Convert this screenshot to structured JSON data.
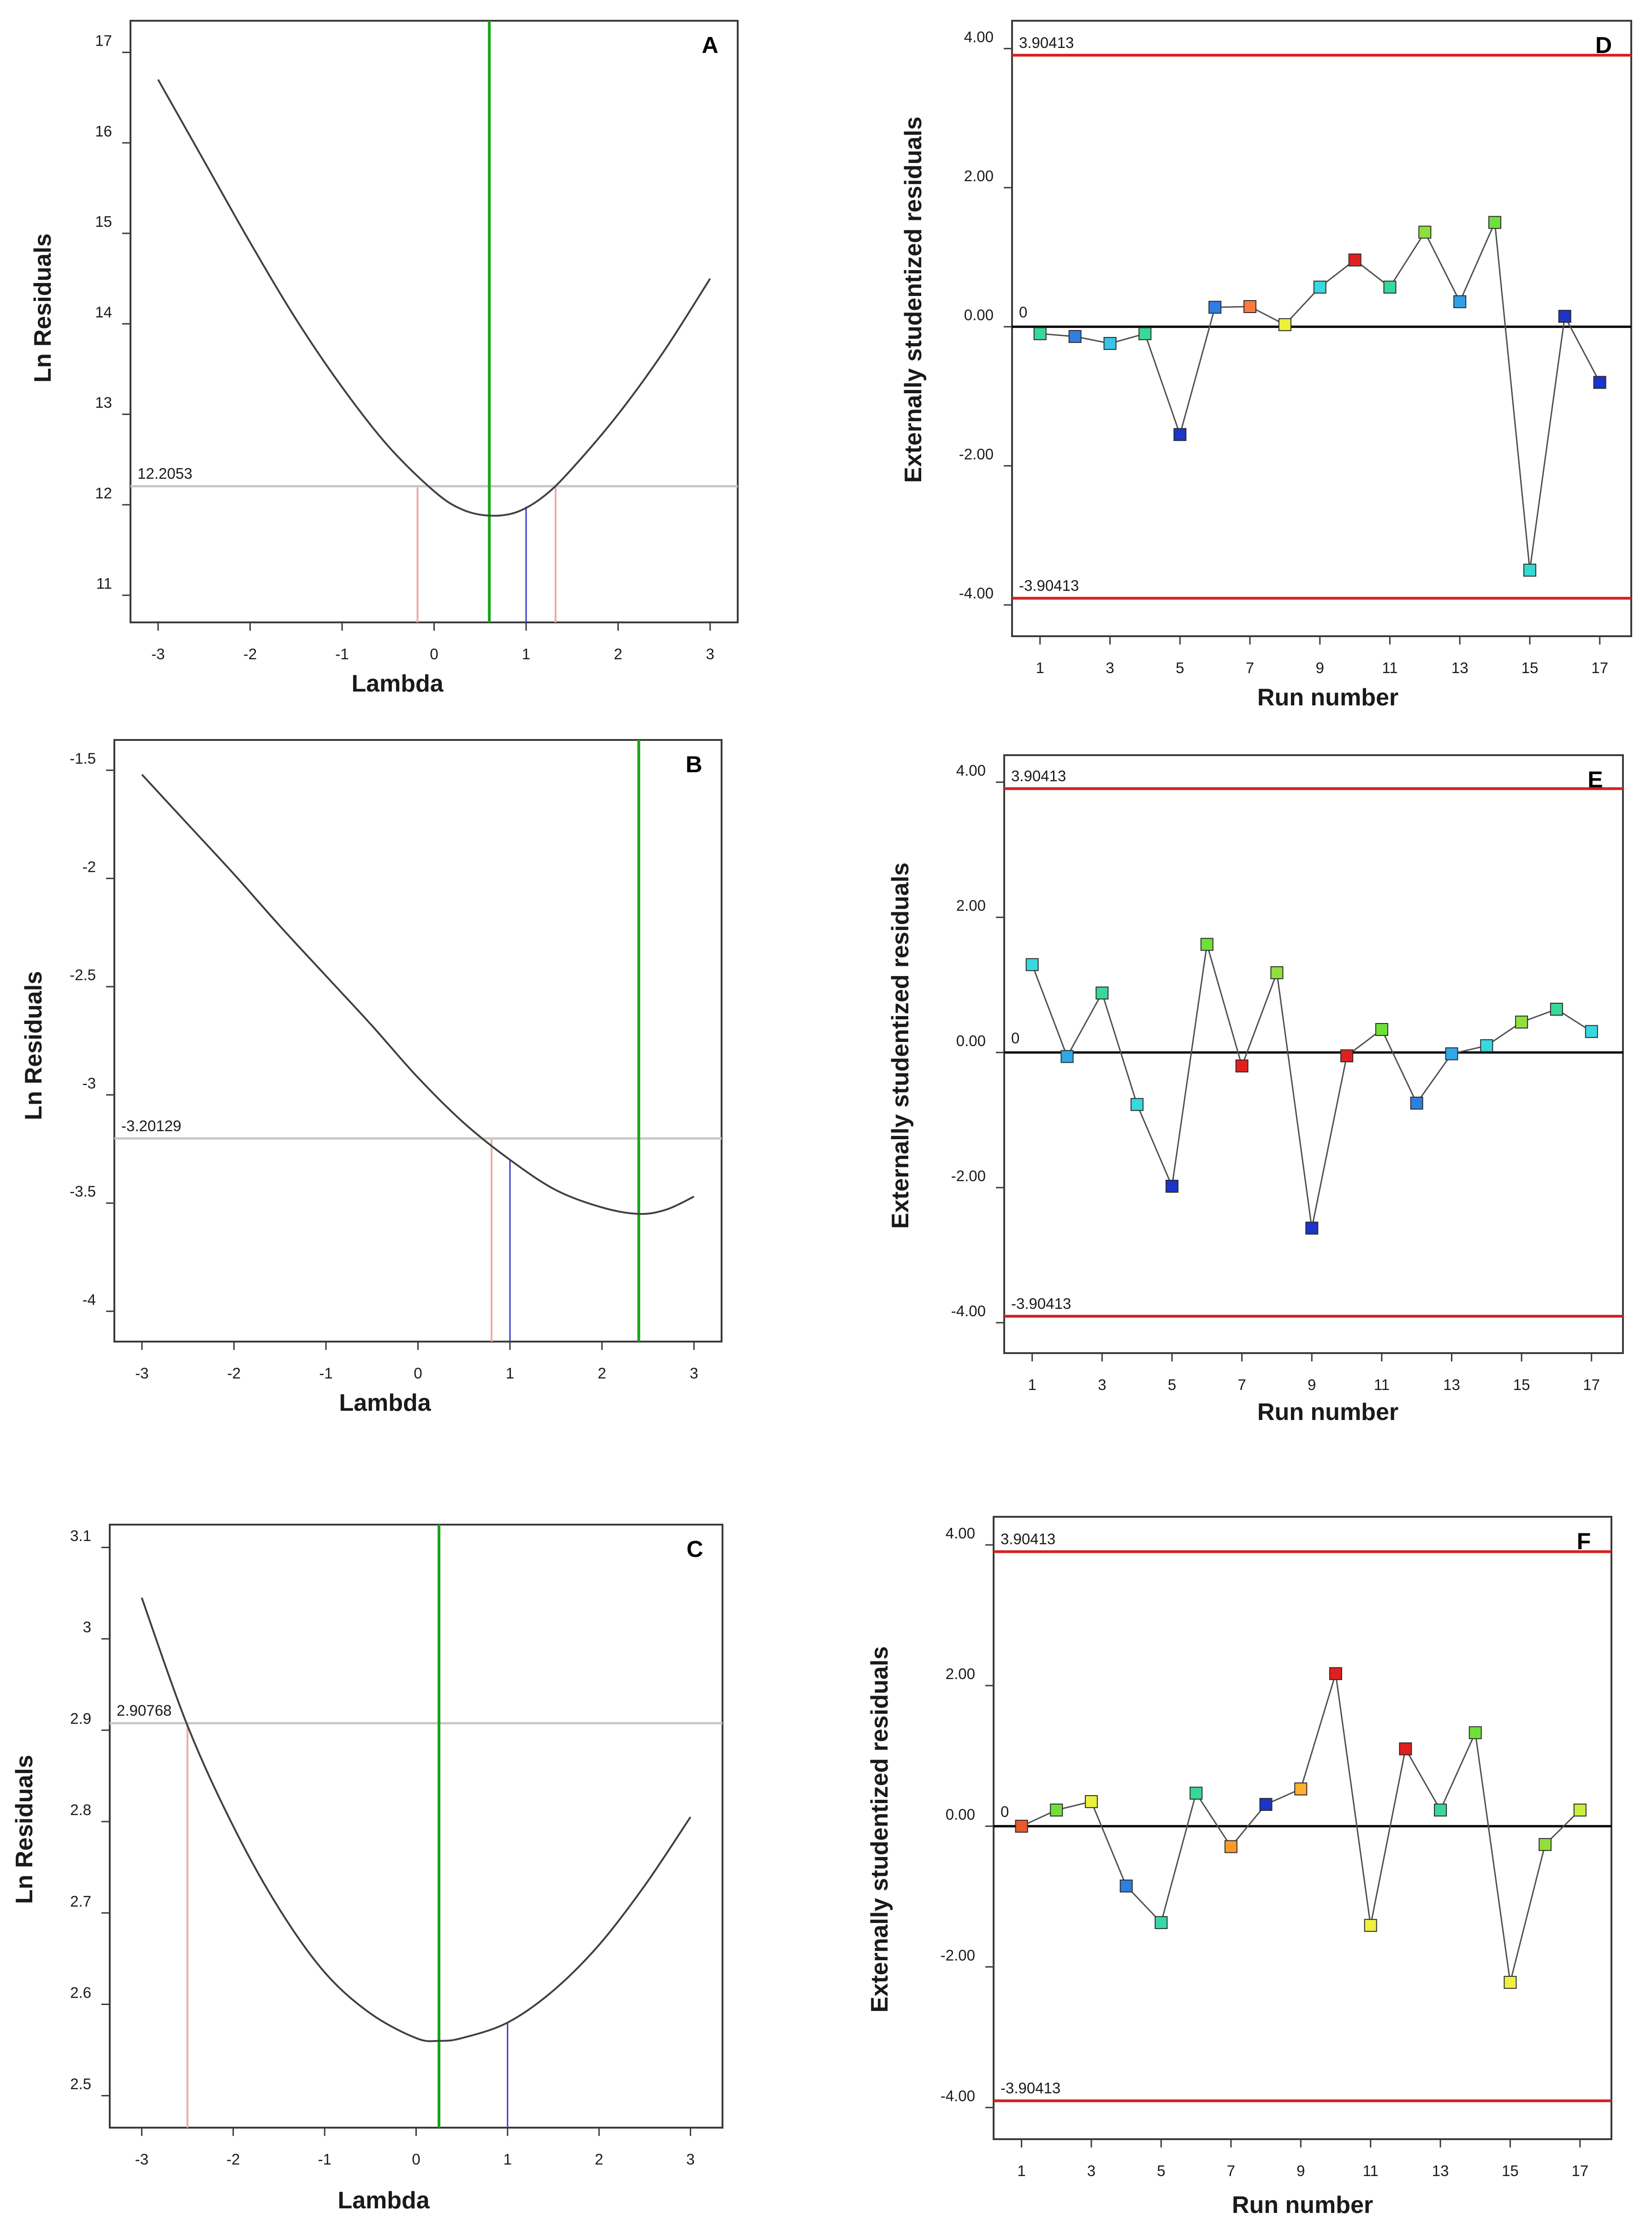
{
  "colors": {
    "curve": "#404040",
    "ci_line": "#c8c8c8",
    "best_lambda": "#17a317",
    "current_lambda": "#3a3ac8",
    "ci_bound": "#f2a8a8",
    "limit": "#d42020",
    "zero": "#000000",
    "connector": "#505050"
  },
  "chart_data": [
    {
      "id": "A",
      "type": "line",
      "panel_letter": "A",
      "xlabel": "Lambda",
      "ylabel": "Ln Residuals",
      "xlim": [
        -3.3,
        3.3
      ],
      "ylim": [
        10.7,
        17.35
      ],
      "xticks": [
        {
          "v": -3,
          "label": "-3"
        },
        {
          "v": -2,
          "label": "-2"
        },
        {
          "v": -1,
          "label": "-1"
        },
        {
          "v": 0,
          "label": "0"
        },
        {
          "v": 1,
          "label": "1"
        },
        {
          "v": 2,
          "label": "2"
        },
        {
          "v": 3,
          "label": "3"
        }
      ],
      "yticks": [
        {
          "v": 11,
          "label": "11"
        },
        {
          "v": 12,
          "label": "12"
        },
        {
          "v": 13,
          "label": "13"
        },
        {
          "v": 14,
          "label": "14"
        },
        {
          "v": 15,
          "label": "15"
        },
        {
          "v": 16,
          "label": "16"
        },
        {
          "v": 17,
          "label": "17"
        }
      ],
      "curve": {
        "x": [
          -3,
          -2.5,
          -2,
          -1.5,
          -1,
          -0.5,
          0,
          0.3,
          0.6,
          0.9,
          1.2,
          1.5,
          2,
          2.5,
          3
        ],
        "y": [
          16.7,
          15.8,
          14.9,
          14.05,
          13.3,
          12.65,
          12.15,
          11.95,
          11.88,
          11.92,
          12.1,
          12.4,
          13.0,
          13.7,
          14.5
        ]
      },
      "ci_value": 12.2053,
      "ci_label": "12.2053",
      "best_lambda": 0.6,
      "current_lambda": 1,
      "ci_bounds": [
        -0.18,
        1.32
      ]
    },
    {
      "id": "B",
      "type": "line",
      "panel_letter": "B",
      "xlabel": "Lambda",
      "ylabel": "Ln Residuals",
      "xlim": [
        -3.3,
        3.3
      ],
      "ylim": [
        -4.14,
        -1.36
      ],
      "xticks": [
        {
          "v": -3,
          "label": "-3"
        },
        {
          "v": -2,
          "label": "-2"
        },
        {
          "v": -1,
          "label": "-1"
        },
        {
          "v": 0,
          "label": "0"
        },
        {
          "v": 1,
          "label": "1"
        },
        {
          "v": 2,
          "label": "2"
        },
        {
          "v": 3,
          "label": "3"
        }
      ],
      "yticks": [
        {
          "v": -4,
          "label": "-4"
        },
        {
          "v": -3.5,
          "label": "-3.5"
        },
        {
          "v": -3,
          "label": "-3"
        },
        {
          "v": -2.5,
          "label": "-2.5"
        },
        {
          "v": -2,
          "label": "-2"
        },
        {
          "v": -1.5,
          "label": "-1.5"
        }
      ],
      "curve": {
        "x": [
          -3,
          -2.5,
          -2,
          -1.5,
          -1,
          -0.5,
          0,
          0.5,
          1,
          1.5,
          2,
          2.4,
          2.7,
          3
        ],
        "y": [
          -1.52,
          -1.75,
          -1.98,
          -2.22,
          -2.45,
          -2.68,
          -2.92,
          -3.13,
          -3.3,
          -3.44,
          -3.52,
          -3.55,
          -3.53,
          -3.47
        ]
      },
      "ci_value": -3.20129,
      "ci_label": "-3.20129",
      "best_lambda": 2.4,
      "current_lambda": 1,
      "ci_bounds": [
        0.8
      ]
    },
    {
      "id": "C",
      "type": "line",
      "panel_letter": "C",
      "xlabel": "Lambda",
      "ylabel": "Ln Residuals",
      "xlim": [
        -3.35,
        3.35
      ],
      "ylim": [
        2.465,
        3.125
      ],
      "xticks": [
        {
          "v": -3,
          "label": "-3"
        },
        {
          "v": -2,
          "label": "-2"
        },
        {
          "v": -1,
          "label": "-1"
        },
        {
          "v": 0,
          "label": "0"
        },
        {
          "v": 1,
          "label": "1"
        },
        {
          "v": 2,
          "label": "2"
        },
        {
          "v": 3,
          "label": "3"
        }
      ],
      "yticks": [
        {
          "v": 2.5,
          "label": "2.5"
        },
        {
          "v": 2.6,
          "label": "2.6"
        },
        {
          "v": 2.7,
          "label": "2.7"
        },
        {
          "v": 2.8,
          "label": "2.8"
        },
        {
          "v": 2.9,
          "label": "2.9"
        },
        {
          "v": 3.0,
          "label": "3"
        },
        {
          "v": 3.1,
          "label": "3.1"
        }
      ],
      "curve": {
        "x": [
          -3,
          -2.5,
          -2,
          -1.5,
          -1,
          -0.5,
          0,
          0.25,
          0.5,
          1,
          1.5,
          2,
          2.5,
          3
        ],
        "y": [
          3.045,
          2.905,
          2.795,
          2.705,
          2.635,
          2.59,
          2.563,
          2.56,
          2.563,
          2.58,
          2.615,
          2.665,
          2.73,
          2.805
        ]
      },
      "ci_value": 2.90768,
      "ci_label": "2.90768",
      "best_lambda": 0.25,
      "current_lambda": 1,
      "ci_bounds": [
        -2.5
      ]
    },
    {
      "id": "D",
      "type": "scatter",
      "panel_letter": "D",
      "xlabel": "Run number",
      "ylabel": "Externally studentized residuals",
      "xlim": [
        0.2,
        17.9
      ],
      "ylim": [
        -4.45,
        4.4
      ],
      "xticks": [
        {
          "v": 1,
          "label": "1"
        },
        {
          "v": 3,
          "label": "3"
        },
        {
          "v": 5,
          "label": "5"
        },
        {
          "v": 7,
          "label": "7"
        },
        {
          "v": 9,
          "label": "9"
        },
        {
          "v": 11,
          "label": "11"
        },
        {
          "v": 13,
          "label": "13"
        },
        {
          "v": 15,
          "label": "15"
        },
        {
          "v": 17,
          "label": "17"
        }
      ],
      "yticks": [
        {
          "v": -4,
          "label": "-4.00"
        },
        {
          "v": -2,
          "label": "-2.00"
        },
        {
          "v": 0,
          "label": "0.00"
        },
        {
          "v": 2,
          "label": "2.00"
        },
        {
          "v": 4,
          "label": "4.00"
        }
      ],
      "upper_limit": 3.90413,
      "lower_limit": -3.90413,
      "upper_label": "3.90413",
      "lower_label": "-3.90413",
      "zero_label": "0",
      "x": [
        1,
        2,
        3,
        4,
        5,
        6,
        7,
        8,
        9,
        10,
        11,
        12,
        13,
        14,
        15,
        16,
        17
      ],
      "y": [
        -0.1,
        -0.14,
        -0.24,
        -0.1,
        -1.55,
        0.28,
        0.29,
        0.03,
        0.57,
        0.96,
        0.57,
        1.36,
        0.36,
        1.5,
        -3.5,
        0.15,
        -0.8
      ],
      "point_colors": [
        "#37d898",
        "#2f7fe0",
        "#36c4e8",
        "#37d898",
        "#1a35c8",
        "#2f7fe0",
        "#ff7a3d",
        "#eaf03c",
        "#38d8e0",
        "#e02020",
        "#37d898",
        "#8fe03a",
        "#2f9fe8",
        "#6fe03a",
        "#38d8d0",
        "#1a35c8",
        "#1a35c8"
      ]
    },
    {
      "id": "E",
      "type": "scatter",
      "panel_letter": "E",
      "xlabel": "Run number",
      "ylabel": "Externally studentized residuals",
      "xlim": [
        0.2,
        17.9
      ],
      "ylim": [
        -4.45,
        4.4
      ],
      "xticks": [
        {
          "v": 1,
          "label": "1"
        },
        {
          "v": 3,
          "label": "3"
        },
        {
          "v": 5,
          "label": "5"
        },
        {
          "v": 7,
          "label": "7"
        },
        {
          "v": 9,
          "label": "9"
        },
        {
          "v": 11,
          "label": "11"
        },
        {
          "v": 13,
          "label": "13"
        },
        {
          "v": 15,
          "label": "15"
        },
        {
          "v": 17,
          "label": "17"
        }
      ],
      "yticks": [
        {
          "v": -4,
          "label": "-4.00"
        },
        {
          "v": -2,
          "label": "-2.00"
        },
        {
          "v": 0,
          "label": "0.00"
        },
        {
          "v": 2,
          "label": "2.00"
        },
        {
          "v": 4,
          "label": "4.00"
        }
      ],
      "upper_limit": 3.90413,
      "lower_limit": -3.90413,
      "upper_label": "3.90413",
      "lower_label": "-3.90413",
      "zero_label": "0",
      "x": [
        1,
        2,
        3,
        4,
        5,
        6,
        7,
        8,
        9,
        10,
        11,
        12,
        13,
        14,
        15,
        16,
        17
      ],
      "y": [
        1.3,
        -0.06,
        0.88,
        -0.77,
        -1.98,
        1.6,
        -0.2,
        1.18,
        -2.6,
        -0.05,
        0.34,
        -0.75,
        -0.02,
        0.1,
        0.45,
        0.64,
        0.31
      ],
      "point_colors": [
        "#38d8e0",
        "#2fa8e8",
        "#37d898",
        "#38d8e0",
        "#1a35c8",
        "#6fe03a",
        "#e02020",
        "#8fe03a",
        "#1a35c8",
        "#e02020",
        "#6fe03a",
        "#2f7fe0",
        "#2fa8e8",
        "#38d8e0",
        "#8fe03a",
        "#37d898",
        "#38d8e0"
      ]
    },
    {
      "id": "F",
      "type": "scatter",
      "panel_letter": "F",
      "xlabel": "Run number",
      "ylabel": "Externally studentized residuals",
      "xlim": [
        0.2,
        17.9
      ],
      "ylim": [
        -4.45,
        4.4
      ],
      "xticks": [
        {
          "v": 1,
          "label": "1"
        },
        {
          "v": 3,
          "label": "3"
        },
        {
          "v": 5,
          "label": "5"
        },
        {
          "v": 7,
          "label": "7"
        },
        {
          "v": 9,
          "label": "9"
        },
        {
          "v": 11,
          "label": "11"
        },
        {
          "v": 13,
          "label": "13"
        },
        {
          "v": 15,
          "label": "15"
        },
        {
          "v": 17,
          "label": "17"
        }
      ],
      "yticks": [
        {
          "v": -4,
          "label": "-4.00"
        },
        {
          "v": -2,
          "label": "-2.00"
        },
        {
          "v": 0,
          "label": "0.00"
        },
        {
          "v": 2,
          "label": "2.00"
        },
        {
          "v": 4,
          "label": "4.00"
        }
      ],
      "upper_limit": 3.90413,
      "lower_limit": -3.90413,
      "upper_label": "3.90413",
      "lower_label": "-3.90413",
      "zero_label": "0",
      "x": [
        1,
        2,
        3,
        4,
        5,
        6,
        7,
        8,
        9,
        10,
        11,
        12,
        13,
        14,
        15,
        16,
        17
      ],
      "y": [
        0.0,
        0.23,
        0.35,
        -0.85,
        -1.37,
        0.47,
        -0.29,
        0.31,
        0.53,
        2.17,
        -1.41,
        1.1,
        0.23,
        1.33,
        -2.22,
        -0.26,
        0.23
      ],
      "point_colors": [
        "#e85a2a",
        "#6fe03a",
        "#eaf03c",
        "#2f7fe0",
        "#37d8a8",
        "#37d898",
        "#ff9a2a",
        "#1a35c8",
        "#ffb030",
        "#e02020",
        "#f0f040",
        "#e02020",
        "#37d898",
        "#6fe03a",
        "#f0f040",
        "#8fe03a",
        "#c8f03a"
      ]
    }
  ]
}
